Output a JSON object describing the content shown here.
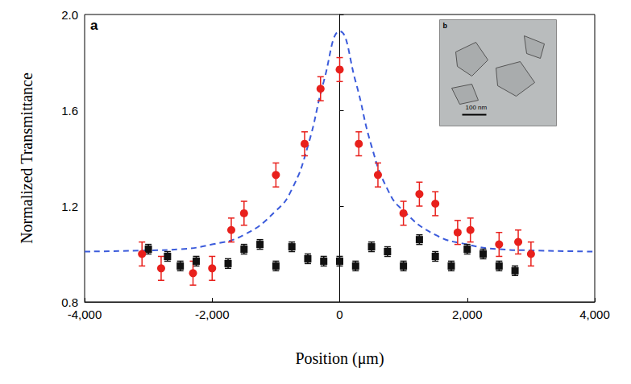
{
  "chart_data": {
    "type": "scatter",
    "x_label": "Position (μm)",
    "y_label": "Normalized Transmittance",
    "panel_label": "a",
    "inset_label": "b",
    "inset_scale_bar": "100 nm",
    "xlim": [
      -4000,
      4000
    ],
    "xticks": [
      {
        "value": -4000,
        "label": "-4,000"
      },
      {
        "value": -2000,
        "label": "-2,000"
      },
      0,
      {
        "value": 2000,
        "label": "2,000"
      },
      {
        "value": 4000,
        "label": "4,000"
      }
    ],
    "ylim": [
      0.8,
      2.0
    ],
    "yticks": [
      0.8,
      1.2,
      1.6,
      {
        "value": 2.0,
        "label": "2.0"
      }
    ],
    "grid": false,
    "series": [
      {
        "type": "line",
        "color": "#3b5bdb",
        "line_style": "dashed",
        "x": [
          -4000,
          -3000,
          -2500,
          -2000,
          -1500,
          -1000,
          -750,
          -500,
          -250,
          0,
          250,
          500,
          750,
          1000,
          1500,
          2000,
          2500,
          3000,
          4000
        ],
        "values": [
          1.01,
          1.015,
          1.02,
          1.04,
          1.08,
          1.18,
          1.27,
          1.45,
          1.72,
          1.93,
          1.72,
          1.45,
          1.27,
          1.18,
          1.08,
          1.04,
          1.02,
          1.015,
          1.01
        ]
      },
      {
        "type": "scatter",
        "color": "#111111",
        "marker": "square",
        "x": [
          -3000,
          -2700,
          -2500,
          -2250,
          -1750,
          -1500,
          -1250,
          -1000,
          -750,
          -500,
          -250,
          0,
          250,
          500,
          750,
          1000,
          1250,
          1500,
          1750,
          2000,
          2250,
          2500,
          2750
        ],
        "values": [
          1.02,
          0.99,
          0.95,
          0.97,
          0.96,
          1.02,
          1.04,
          0.95,
          1.03,
          0.98,
          0.97,
          0.97,
          0.95,
          1.03,
          1.01,
          0.95,
          1.06,
          0.99,
          0.95,
          1.02,
          1.0,
          0.95,
          0.93
        ],
        "errors": [
          0.02,
          0.02,
          0.02,
          0.02,
          0.02,
          0.02,
          0.02,
          0.02,
          0.02,
          0.02,
          0.02,
          0.02,
          0.02,
          0.02,
          0.02,
          0.02,
          0.02,
          0.02,
          0.02,
          0.02,
          0.02,
          0.02,
          0.02
        ]
      },
      {
        "type": "scatter",
        "color": "#e8201c",
        "marker": "circle",
        "x": [
          -3100,
          -2800,
          -2300,
          -2000,
          -1700,
          -1500,
          -1000,
          -550,
          -300,
          0,
          300,
          600,
          1000,
          1250,
          1500,
          1850,
          2050,
          2500,
          2800,
          3000
        ],
        "values": [
          1.0,
          0.94,
          0.92,
          0.94,
          1.1,
          1.17,
          1.33,
          1.46,
          1.69,
          1.77,
          1.46,
          1.33,
          1.17,
          1.25,
          1.21,
          1.09,
          1.1,
          1.04,
          1.05,
          1.0
        ],
        "errors": [
          0.05,
          0.05,
          0.05,
          0.05,
          0.05,
          0.05,
          0.05,
          0.05,
          0.05,
          0.05,
          0.05,
          0.05,
          0.05,
          0.05,
          0.05,
          0.05,
          0.05,
          0.05,
          0.05,
          0.05
        ]
      }
    ]
  }
}
